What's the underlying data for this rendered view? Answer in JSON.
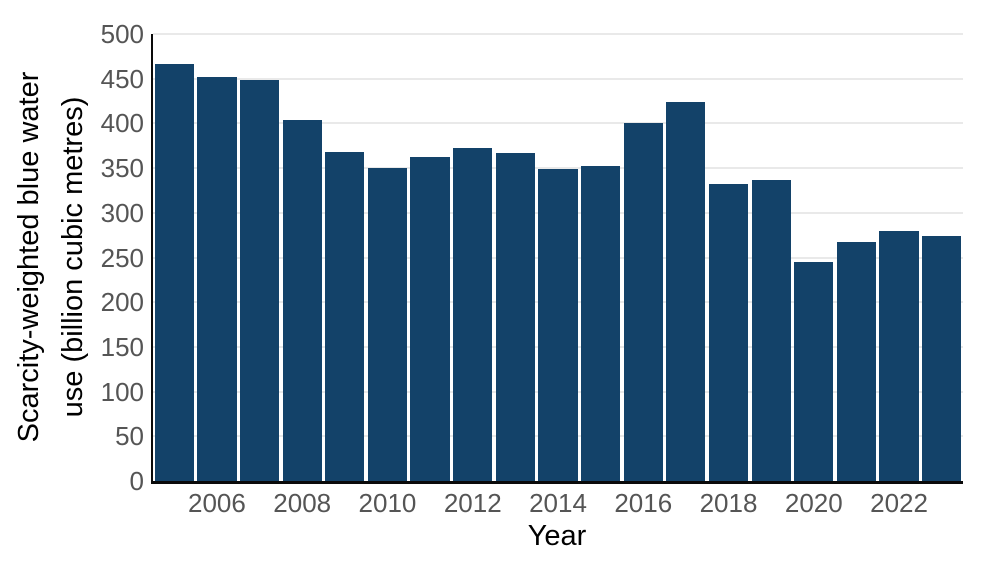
{
  "chart_data": {
    "type": "bar",
    "title": "",
    "xlabel": "Year",
    "ylabel": "Scarcity-weighted blue water use (billion cubic metres)",
    "ylabel_lines": [
      "Scarcity-weighted blue water",
      "use (billion cubic metres)"
    ],
    "categories": [
      2005,
      2006,
      2007,
      2008,
      2009,
      2010,
      2011,
      2012,
      2013,
      2014,
      2015,
      2016,
      2017,
      2018,
      2019,
      2020,
      2021,
      2022,
      2023
    ],
    "values": [
      466,
      452,
      449,
      404,
      368,
      350,
      362,
      372,
      367,
      349,
      352,
      401,
      424,
      332,
      337,
      245,
      267,
      280,
      274
    ],
    "ylim": [
      0,
      500
    ],
    "yticks": [
      0,
      50,
      100,
      150,
      200,
      250,
      300,
      350,
      400,
      450,
      500
    ],
    "xticks": [
      2006,
      2008,
      2010,
      2012,
      2014,
      2016,
      2018,
      2020,
      2022
    ],
    "grid": "horizontal",
    "legend": "none",
    "colors": {
      "bar": "#134269",
      "gridline": "#e9e9e9",
      "axis_line": "#0a0a0a",
      "tick_label": "#555555",
      "axis_title": "#000000"
    }
  }
}
